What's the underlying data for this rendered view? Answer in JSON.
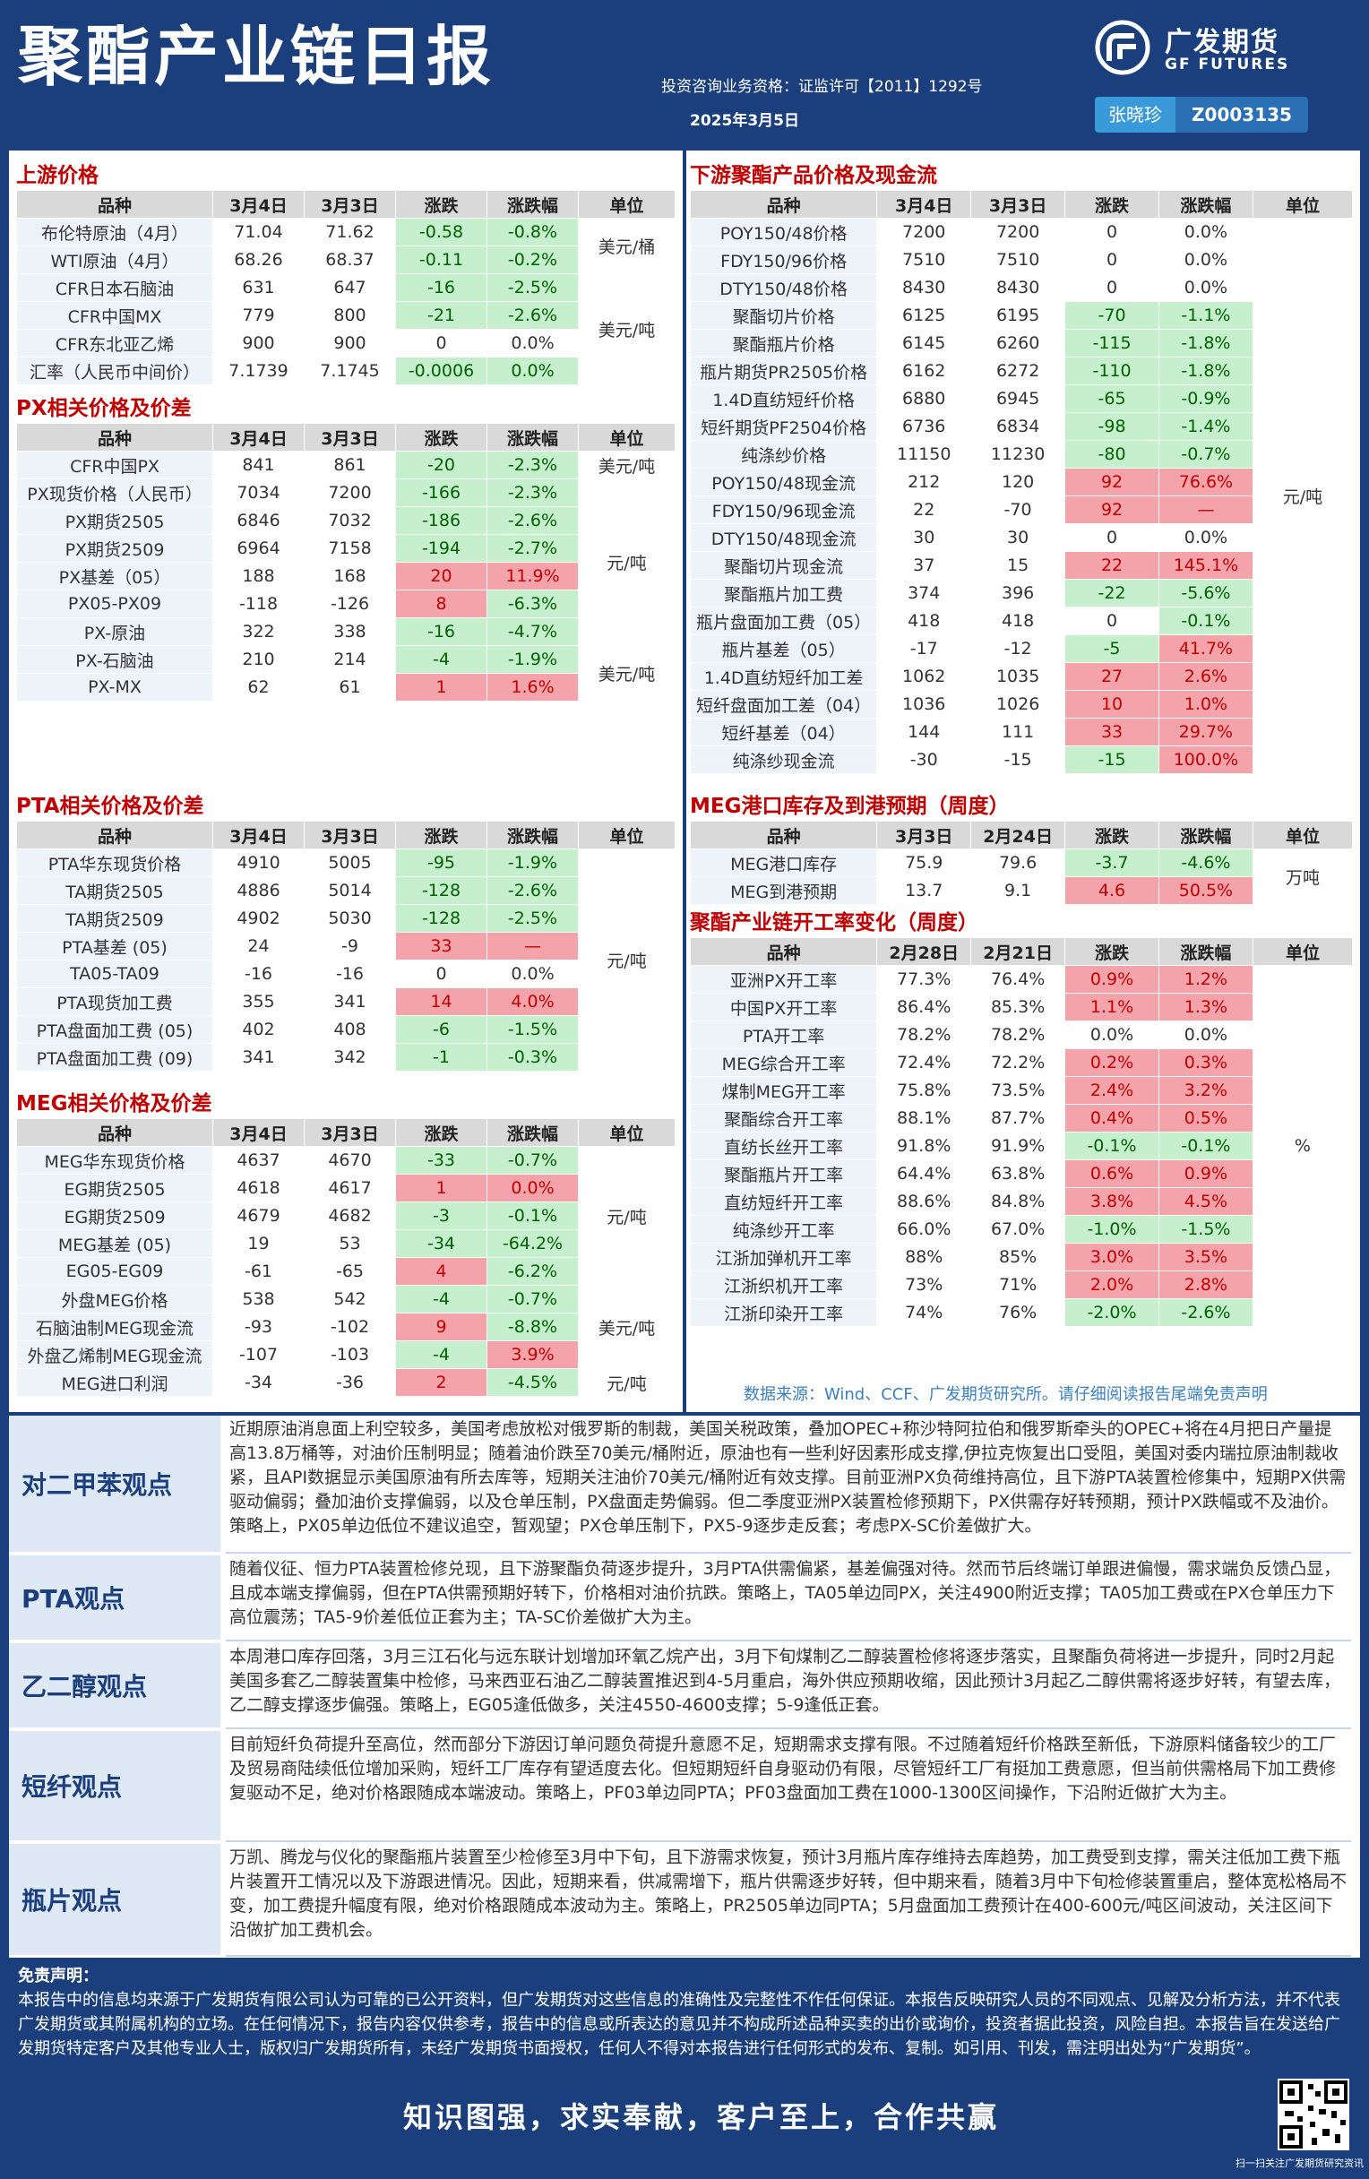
{
  "header": {
    "title": "聚酯产业链日报",
    "license": "投资咨询业务资格：证监许可【2011】1292号",
    "date": "2025年3月5日",
    "logo_cn": "广发期货",
    "logo_en": "GF FUTURES",
    "analyst_name": "张晓珍",
    "analyst_cert": "Z0003135"
  },
  "sections": {
    "upstream": {
      "title": "上游价格",
      "headers": [
        "品种",
        "3月4日",
        "3月3日",
        "涨跌",
        "涨跌幅",
        "单位"
      ],
      "rows": [
        [
          "布伦特原油（4月）",
          "71.04",
          "71.62",
          "-0.58",
          "-0.8%"
        ],
        [
          "WTI原油（4月）",
          "68.26",
          "68.37",
          "-0.11",
          "-0.2%"
        ],
        [
          "CFR日本石脑油",
          "631",
          "647",
          "-16",
          "-2.5%"
        ],
        [
          "CFR中国MX",
          "779",
          "800",
          "-21",
          "-2.6%"
        ],
        [
          "CFR东北亚乙烯",
          "900",
          "900",
          "0",
          "0.0%"
        ],
        [
          "汇率（人民币中间价）",
          "7.1739",
          "7.1745",
          "-0.0006",
          "0.0%"
        ]
      ],
      "units": [
        "美元/桶",
        "美元/吨"
      ]
    },
    "px": {
      "title": "PX相关价格及价差",
      "headers": [
        "品种",
        "3月4日",
        "3月3日",
        "涨跌",
        "涨跌幅",
        "单位"
      ],
      "rows": [
        [
          "CFR中国PX",
          "841",
          "861",
          "-20",
          "-2.3%"
        ],
        [
          "PX现货价格（人民币）",
          "7034",
          "7200",
          "-166",
          "-2.3%"
        ],
        [
          "PX期货2505",
          "6846",
          "7032",
          "-186",
          "-2.6%"
        ],
        [
          "PX期货2509",
          "6964",
          "7158",
          "-194",
          "-2.7%"
        ],
        [
          "PX基差（05）",
          "188",
          "168",
          "20",
          "11.9%"
        ],
        [
          "PX05-PX09",
          "-118",
          "-126",
          "8",
          "-6.3%"
        ],
        [
          "PX-原油",
          "322",
          "338",
          "-16",
          "-4.7%"
        ],
        [
          "PX-石脑油",
          "210",
          "214",
          "-4",
          "-1.9%"
        ],
        [
          "PX-MX",
          "62",
          "61",
          "1",
          "1.6%"
        ]
      ],
      "units": [
        "美元/吨",
        "元/吨",
        "美元/吨"
      ]
    },
    "pta": {
      "title": "PTA相关价格及价差",
      "headers": [
        "品种",
        "3月4日",
        "3月3日",
        "涨跌",
        "涨跌幅",
        "单位"
      ],
      "rows": [
        [
          "PTA华东现货价格",
          "4910",
          "5005",
          "-95",
          "-1.9%"
        ],
        [
          "TA期货2505",
          "4886",
          "5014",
          "-128",
          "-2.6%"
        ],
        [
          "TA期货2509",
          "4902",
          "5030",
          "-128",
          "-2.5%"
        ],
        [
          "PTA基差 (05)",
          "24",
          "-9",
          "33",
          "—"
        ],
        [
          "TA05-TA09",
          "-16",
          "-16",
          "0",
          "0.0%"
        ],
        [
          "PTA现货加工费",
          "355",
          "341",
          "14",
          "4.0%"
        ],
        [
          "PTA盘面加工费 (05)",
          "402",
          "408",
          "-6",
          "-1.5%"
        ],
        [
          "PTA盘面加工费 (09)",
          "341",
          "342",
          "-1",
          "-0.3%"
        ]
      ],
      "units": [
        "元/吨"
      ]
    },
    "meg": {
      "title": "MEG相关价格及价差",
      "headers": [
        "品种",
        "3月4日",
        "3月3日",
        "涨跌",
        "涨跌幅",
        "单位"
      ],
      "rows": [
        [
          "MEG华东现货价格",
          "4637",
          "4670",
          "-33",
          "-0.7%"
        ],
        [
          "EG期货2505",
          "4618",
          "4617",
          "1",
          "0.0%"
        ],
        [
          "EG期货2509",
          "4679",
          "4682",
          "-3",
          "-0.1%"
        ],
        [
          "MEG基差 (05)",
          "19",
          "53",
          "-34",
          "-64.2%"
        ],
        [
          "EG05-EG09",
          "-61",
          "-65",
          "4",
          "-6.2%"
        ],
        [
          "外盘MEG价格",
          "538",
          "542",
          "-4",
          "-0.7%"
        ],
        [
          "石脑油制MEG现金流",
          "-93",
          "-102",
          "9",
          "-8.8%"
        ],
        [
          "外盘乙烯制MEG现金流",
          "-107",
          "-103",
          "-4",
          "3.9%"
        ],
        [
          "MEG进口利润",
          "-34",
          "-36",
          "2",
          "-4.5%"
        ]
      ],
      "units": [
        "元/吨",
        "美元/吨",
        "元/吨"
      ]
    },
    "downstream": {
      "title": "下游聚酯产品价格及现金流",
      "headers": [
        "品种",
        "3月4日",
        "3月3日",
        "涨跌",
        "涨跌幅",
        "单位"
      ],
      "rows": [
        [
          "POY150/48价格",
          "7200",
          "7200",
          "0",
          "0.0%"
        ],
        [
          "FDY150/96价格",
          "7510",
          "7510",
          "0",
          "0.0%"
        ],
        [
          "DTY150/48价格",
          "8430",
          "8430",
          "0",
          "0.0%"
        ],
        [
          "聚酯切片价格",
          "6125",
          "6195",
          "-70",
          "-1.1%"
        ],
        [
          "聚酯瓶片价格",
          "6145",
          "6260",
          "-115",
          "-1.8%"
        ],
        [
          "瓶片期货PR2505价格",
          "6162",
          "6272",
          "-110",
          "-1.8%"
        ],
        [
          "1.4D直纺短纤价格",
          "6880",
          "6945",
          "-65",
          "-0.9%"
        ],
        [
          "短纤期货PF2504价格",
          "6736",
          "6834",
          "-98",
          "-1.4%"
        ],
        [
          "纯涤纱价格",
          "11150",
          "11230",
          "-80",
          "-0.7%"
        ],
        [
          "POY150/48现金流",
          "212",
          "120",
          "92",
          "76.6%"
        ],
        [
          "FDY150/96现金流",
          "22",
          "-70",
          "92",
          "—"
        ],
        [
          "DTY150/48现金流",
          "30",
          "30",
          "0",
          "0.0%"
        ],
        [
          "聚酯切片现金流",
          "37",
          "15",
          "22",
          "145.1%"
        ],
        [
          "聚酯瓶片加工费",
          "374",
          "396",
          "-22",
          "-5.6%"
        ],
        [
          "瓶片盘面加工费（05）",
          "418",
          "418",
          "0",
          "-0.1%"
        ],
        [
          "瓶片基差（05）",
          "-17",
          "-12",
          "-5",
          "41.7%"
        ],
        [
          "1.4D直纺短纤加工差",
          "1062",
          "1035",
          "27",
          "2.6%"
        ],
        [
          "短纤盘面加工差（04）",
          "1036",
          "1026",
          "10",
          "1.0%"
        ],
        [
          "短纤基差（04）",
          "144",
          "111",
          "33",
          "29.7%"
        ],
        [
          "纯涤纱现金流",
          "-30",
          "-15",
          "-15",
          "100.0%"
        ]
      ],
      "units": [
        "元/吨"
      ]
    },
    "meg_port": {
      "title": "MEG港口库存及到港预期（周度）",
      "headers": [
        "品种",
        "3月3日",
        "2月24日",
        "涨跌",
        "涨跌幅",
        "单位"
      ],
      "rows": [
        [
          "MEG港口库存",
          "75.9",
          "79.6",
          "-3.7",
          "-4.6%"
        ],
        [
          "MEG到港预期",
          "13.7",
          "9.1",
          "4.6",
          "50.5%"
        ]
      ],
      "units": [
        "万吨"
      ]
    },
    "operating": {
      "title": "聚酯产业链开工率变化（周度）",
      "headers": [
        "品种",
        "2月28日",
        "2月21日",
        "涨跌",
        "涨跌幅",
        "单位"
      ],
      "rows": [
        [
          "亚洲PX开工率",
          "77.3%",
          "76.4%",
          "0.9%",
          "1.2%"
        ],
        [
          "中国PX开工率",
          "86.4%",
          "85.3%",
          "1.1%",
          "1.3%"
        ],
        [
          "PTA开工率",
          "78.2%",
          "78.2%",
          "0.0%",
          "0.0%"
        ],
        [
          "MEG综合开工率",
          "72.4%",
          "72.2%",
          "0.2%",
          "0.3%"
        ],
        [
          "煤制MEG开工率",
          "75.8%",
          "73.5%",
          "2.4%",
          "3.2%"
        ],
        [
          "聚酯综合开工率",
          "88.1%",
          "87.7%",
          "0.4%",
          "0.5%"
        ],
        [
          "直纺长丝开工率",
          "91.8%",
          "91.9%",
          "-0.1%",
          "-0.1%"
        ],
        [
          "聚酯瓶片开工率",
          "64.4%",
          "63.8%",
          "0.6%",
          "0.9%"
        ],
        [
          "直纺短纤开工率",
          "88.6%",
          "84.8%",
          "3.8%",
          "4.5%"
        ],
        [
          "纯涤纱开工率",
          "66.0%",
          "67.0%",
          "-1.0%",
          "-1.5%"
        ],
        [
          "江浙加弹机开工率",
          "88%",
          "85%",
          "3.0%",
          "3.5%"
        ],
        [
          "江浙织机开工率",
          "73%",
          "71%",
          "2.0%",
          "2.8%"
        ],
        [
          "江浙印染开工率",
          "74%",
          "76%",
          "-2.0%",
          "-2.6%"
        ]
      ],
      "units": [
        "%"
      ]
    }
  },
  "source_note": "数据来源：Wind、CCF、广发期货研究所。请仔细阅读报告尾端免责声明",
  "views": [
    {
      "label": "对二甲苯观点",
      "text": "近期原油消息面上利空较多，美国考虑放松对俄罗斯的制裁，美国关税政策，叠加OPEC+称沙特阿拉伯和俄罗斯牵头的OPEC+将在4月把日产量提高13.8万桶等，对油价压制明显；随着油价跌至70美元/桶附近，原油也有一些利好因素形成支撑,伊拉克恢复出口受阻，美国对委内瑞拉原油制裁收紧，且API数据显示美国原油有所去库等，短期关注油价70美元/桶附近有效支撑。目前亚洲PX负荷维持高位，且下游PTA装置检修集中，短期PX供需驱动偏弱；叠加油价支撑偏弱，以及仓单压制，PX盘面走势偏弱。但二季度亚洲PX装置检修预期下，PX供需存好转预期，预计PX跌幅或不及油价。策略上，PX05单边低位不建议追空，暂观望；PX仓单压制下，PX5-9逐步走反套；考虑PX-SC价差做扩大。"
    },
    {
      "label": "PTA观点",
      "text": "随着仪征、恒力PTA装置检修兑现，且下游聚酯负荷逐步提升，3月PTA供需偏紧，基差偏强对待。然而节后终端订单跟进偏慢，需求端负反馈凸显，且成本端支撑偏弱，但在PTA供需预期好转下，价格相对油价抗跌。策略上，TA05单边同PX，关注4900附近支撑；TA05加工费或在PX仓单压力下高位震荡；TA5-9价差低位正套为主；TA-SC价差做扩大为主。"
    },
    {
      "label": "乙二醇观点",
      "text": "本周港口库存回落，3月三江石化与远东联计划增加环氧乙烷产出，3月下旬煤制乙二醇装置检修将逐步落实，且聚酯负荷将进一步提升，同时2月起美国多套乙二醇装置集中检修，马来西亚石油乙二醇装置推迟到4-5月重启，海外供应预期收缩，因此预计3月起乙二醇供需将逐步好转，有望去库，乙二醇支撑逐步偏强。策略上，EG05逢低做多，关注4550-4600支撑；5-9逢低正套。"
    },
    {
      "label": "短纤观点",
      "text": "目前短纤负荷提升至高位，然而部分下游因订单问题负荷提升意愿不足，短期需求支撑有限。不过随着短纤价格跌至新低，下游原料储备较少的工厂及贸易商陆续低位增加采购，短纤工厂库存有望适度去化。但短期短纤自身驱动仍有限，尽管短纤工厂有挺加工费意愿，但当前供需格局下加工费修复驱动不足，绝对价格跟随成本端波动。策略上，PF03单边同PTA；PF03盘面加工费在1000-1300区间操作，下沿附近做扩大为主。"
    },
    {
      "label": "瓶片观点",
      "text": "万凯、腾龙与仪化的聚酯瓶片装置至少检修至3月中下旬，且下游需求恢复，预计3月瓶片库存维持去库趋势，加工费受到支撑，需关注低加工费下瓶片装置开工情况以及下游跟进情况。因此，短期来看，供减需增下，瓶片供需逐步好转，但中期来看，随着3月中下旬检修装置重启，整体宽松格局不变，加工费提升幅度有限，绝对价格跟随成本波动为主。策略上，PR2505单边同PTA；5月盘面加工费预计在400-600元/吨区间波动，关注区间下沿做扩加工费机会。"
    }
  ],
  "disclaimer": {
    "title": "免责声明：",
    "text": "本报告中的信息均来源于广发期货有限公司认为可靠的已公开资料，但广发期货对这些信息的准确性及完整性不作任何保证。本报告反映研究人员的不同观点、见解及分析方法，并不代表广发期货或其附属机构的立场。在任何情况下，报告内容仅供参考，报告中的信息或所表达的意见并不构成所述品种买卖的出价或询价，投资者据此投资，风险自担。本报告旨在发送给广发期货特定客户及其他专业人士，版权归广发期货所有，未经广发期货书面授权，任何人不得对本报告进行任何形式的发布、复制。如引用、刊发，需注明出处为“广发期货”。"
  },
  "slogan": "知识图强，求实奉献，客户至上，合作共赢",
  "qr_caption": "扫一扫关注广发期货研究资讯",
  "colors": {
    "navy": "#1b3f7d",
    "up_bg": "#f4a3ab",
    "down_bg": "#c6efce",
    "title_red": "#c00000"
  }
}
